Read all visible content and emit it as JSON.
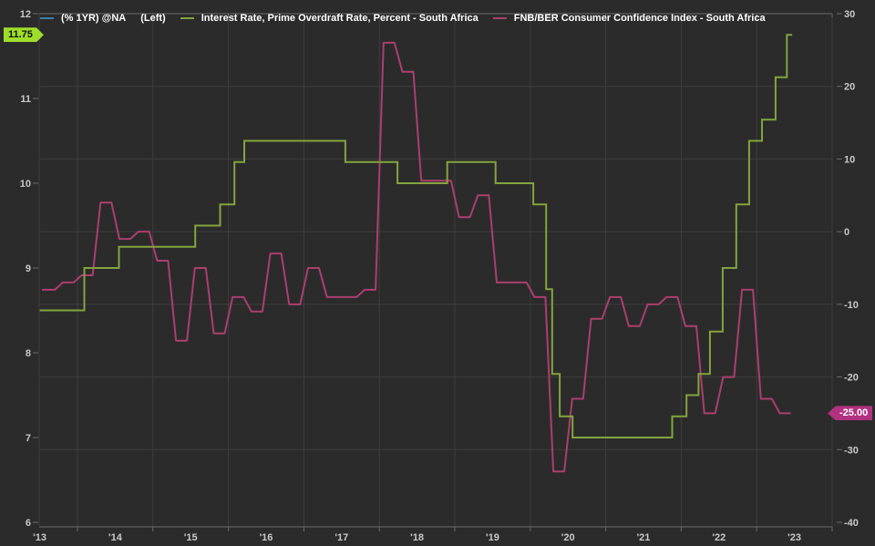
{
  "window": {
    "background": "#2b2b2b",
    "grid_color": "#3e3e3e",
    "axis_color": "#6b6b6b",
    "label_color": "#c9c9c9"
  },
  "legend": {
    "items": [
      {
        "label": "(% 1YR) @NA",
        "qualifier": "(Left)",
        "swatch_color": "#3f80a8"
      },
      {
        "label": "Interest Rate, Prime Overdraft Rate, Percent - South Africa",
        "swatch_color": "#84a43e"
      },
      {
        "label": "FNB/BER Consumer Confidence Index - South Africa",
        "swatch_color": "#ab3f6d"
      }
    ]
  },
  "badges": {
    "left": {
      "text": "11.75",
      "value": 11.75,
      "bg": "#9fdd2b",
      "fg": "#111400",
      "axis": "left"
    },
    "right": {
      "text": "-25.00",
      "value": -25,
      "bg": "#b23180",
      "fg": "#ffffff",
      "axis": "right"
    }
  },
  "chart_data": {
    "type": "line",
    "title": "",
    "x_axis": {
      "start": 2013.5,
      "end": 2023.47,
      "tick_labels": [
        "'13",
        "'14",
        "'15",
        "'16",
        "'17",
        "'18",
        "'19",
        "'20",
        "'21",
        "'22",
        "'23"
      ],
      "tick_years": [
        2013,
        2014,
        2015,
        2016,
        2017,
        2018,
        2019,
        2020,
        2021,
        2022,
        2023
      ],
      "gridline_years": [
        2014,
        2015,
        2016,
        2017,
        2018,
        2019,
        2020,
        2021,
        2022,
        2023
      ]
    },
    "left_axis": {
      "min": 6,
      "max": 12,
      "ticks": [
        12,
        11,
        10,
        9,
        8,
        7,
        6
      ]
    },
    "right_axis": {
      "min": -40,
      "max": 30,
      "ticks": [
        30,
        20,
        10,
        0,
        -10,
        -20,
        -30,
        -40
      ],
      "gridline_values": [
        20,
        10,
        0,
        -10,
        -20,
        -30
      ]
    },
    "series": [
      {
        "name": "(% 1YR) @NA",
        "axis": "left",
        "color": "#3f80a8",
        "style": "line",
        "points": []
      },
      {
        "name": "Interest Rate, Prime Overdraft Rate, Percent - South Africa",
        "axis": "left",
        "color": "#84a43e",
        "style": "step",
        "end": 2023.47,
        "last_value": 11.75,
        "steps": [
          [
            2013.5,
            8.5
          ],
          [
            2014.09,
            9.0
          ],
          [
            2014.55,
            9.25
          ],
          [
            2015.56,
            9.5
          ],
          [
            2015.89,
            9.75
          ],
          [
            2016.08,
            10.25
          ],
          [
            2016.21,
            10.5
          ],
          [
            2017.55,
            10.25
          ],
          [
            2018.24,
            10.0
          ],
          [
            2018.9,
            10.25
          ],
          [
            2019.54,
            10.0
          ],
          [
            2020.04,
            9.75
          ],
          [
            2020.21,
            8.75
          ],
          [
            2020.29,
            7.75
          ],
          [
            2020.39,
            7.25
          ],
          [
            2020.56,
            7.0
          ],
          [
            2021.88,
            7.25
          ],
          [
            2022.07,
            7.5
          ],
          [
            2022.23,
            7.75
          ],
          [
            2022.38,
            8.25
          ],
          [
            2022.55,
            9.0
          ],
          [
            2022.73,
            9.75
          ],
          [
            2022.9,
            10.5
          ],
          [
            2023.07,
            10.75
          ],
          [
            2023.25,
            11.25
          ],
          [
            2023.4,
            11.75
          ]
        ]
      },
      {
        "name": "FNB/BER Consumer Confidence Index - South Africa",
        "axis": "right",
        "color": "#ab3f6d",
        "style": "quarterly-step",
        "last_value": -25,
        "quarters": [
          [
            2013.5,
            -8
          ],
          [
            2013.75,
            -7
          ],
          [
            2014.0,
            -6
          ],
          [
            2014.25,
            4
          ],
          [
            2014.5,
            -1
          ],
          [
            2014.75,
            0
          ],
          [
            2015.0,
            -4
          ],
          [
            2015.25,
            -15
          ],
          [
            2015.5,
            -5
          ],
          [
            2015.75,
            -14
          ],
          [
            2016.0,
            -9
          ],
          [
            2016.25,
            -11
          ],
          [
            2016.5,
            -3
          ],
          [
            2016.75,
            -10
          ],
          [
            2017.0,
            -5
          ],
          [
            2017.25,
            -9
          ],
          [
            2017.5,
            -9
          ],
          [
            2017.75,
            -8
          ],
          [
            2018.0,
            26
          ],
          [
            2018.25,
            22
          ],
          [
            2018.5,
            7
          ],
          [
            2018.75,
            7
          ],
          [
            2019.0,
            2
          ],
          [
            2019.25,
            5
          ],
          [
            2019.5,
            -7
          ],
          [
            2019.75,
            -7
          ],
          [
            2020.0,
            -9
          ],
          [
            2020.25,
            -33
          ],
          [
            2020.5,
            -23
          ],
          [
            2020.75,
            -12
          ],
          [
            2021.0,
            -9
          ],
          [
            2021.25,
            -13
          ],
          [
            2021.5,
            -10
          ],
          [
            2021.75,
            -9
          ],
          [
            2022.0,
            -13
          ],
          [
            2022.25,
            -25
          ],
          [
            2022.5,
            -20
          ],
          [
            2022.75,
            -8
          ],
          [
            2023.0,
            -23
          ],
          [
            2023.25,
            -25
          ]
        ]
      }
    ]
  }
}
